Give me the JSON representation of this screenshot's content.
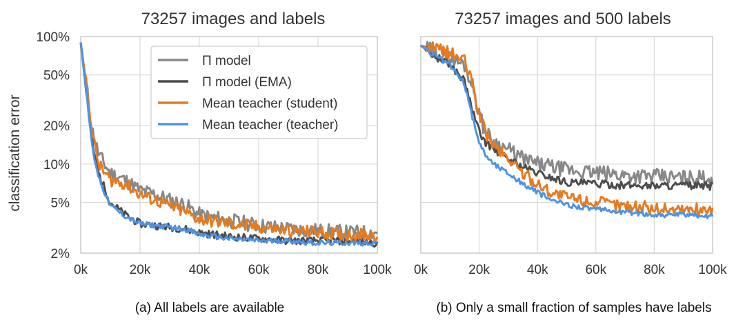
{
  "chart_data": [
    {
      "type": "line",
      "title": "73257 images and labels",
      "caption": "(a) All labels are available",
      "ylabel": "classification error",
      "xlabel": "",
      "xlim": [
        0,
        100000
      ],
      "ylim": [
        0.02,
        1.0
      ],
      "yscale": "log",
      "grid": true,
      "legend_position": "top-right",
      "x_ticks": [
        0,
        20000,
        40000,
        60000,
        80000,
        100000
      ],
      "x_tick_labels": [
        "0k",
        "20k",
        "40k",
        "60k",
        "80k",
        "100k"
      ],
      "y_ticks": [
        0.02,
        0.05,
        0.1,
        0.2,
        0.5,
        1.0
      ],
      "y_tick_labels": [
        "2%",
        "5%",
        "10%",
        "20%",
        "50%",
        "100%"
      ],
      "x": [
        0,
        2000,
        4000,
        6000,
        8000,
        10000,
        15000,
        20000,
        25000,
        30000,
        35000,
        40000,
        50000,
        60000,
        70000,
        80000,
        90000,
        100000
      ],
      "series": [
        {
          "name": "Π model",
          "color": "#888888",
          "values": [
            0.9,
            0.4,
            0.18,
            0.12,
            0.1,
            0.085,
            0.075,
            0.062,
            0.058,
            0.052,
            0.048,
            0.04,
            0.036,
            0.033,
            0.031,
            0.03,
            0.029,
            0.029
          ]
        },
        {
          "name": "Π model (EMA)",
          "color": "#4d4d4d",
          "values": [
            0.9,
            0.35,
            0.14,
            0.085,
            0.065,
            0.05,
            0.04,
            0.034,
            0.033,
            0.032,
            0.031,
            0.029,
            0.027,
            0.026,
            0.025,
            0.025,
            0.025,
            0.024
          ]
        },
        {
          "name": "Mean teacher (student)",
          "color": "#e87a1e",
          "values": [
            0.9,
            0.4,
            0.17,
            0.1,
            0.085,
            0.075,
            0.07,
            0.058,
            0.052,
            0.047,
            0.042,
            0.037,
            0.034,
            0.032,
            0.03,
            0.029,
            0.028,
            0.028
          ]
        },
        {
          "name": "Mean teacher (teacher)",
          "color": "#4d94e6",
          "values": [
            0.9,
            0.34,
            0.13,
            0.08,
            0.06,
            0.047,
            0.039,
            0.034,
            0.033,
            0.032,
            0.031,
            0.028,
            0.026,
            0.025,
            0.025,
            0.024,
            0.024,
            0.024
          ]
        }
      ]
    },
    {
      "type": "line",
      "title": "73257 images and 500 labels",
      "caption": "(b) Only a small fraction of samples have labels",
      "ylabel": "",
      "xlabel": "",
      "xlim": [
        0,
        100000
      ],
      "ylim": [
        0.02,
        1.0
      ],
      "yscale": "log",
      "grid": true,
      "x_ticks": [
        0,
        20000,
        40000,
        60000,
        80000,
        100000
      ],
      "x_tick_labels": [
        "0k",
        "20k",
        "40k",
        "60k",
        "80k",
        "100k"
      ],
      "x": [
        0,
        5000,
        10000,
        15000,
        18000,
        20000,
        22000,
        25000,
        30000,
        35000,
        40000,
        45000,
        50000,
        60000,
        70000,
        80000,
        90000,
        100000
      ],
      "series": [
        {
          "name": "Π model",
          "color": "#888888",
          "values": [
            0.85,
            0.75,
            0.68,
            0.6,
            0.4,
            0.25,
            0.18,
            0.15,
            0.13,
            0.11,
            0.1,
            0.095,
            0.09,
            0.085,
            0.082,
            0.08,
            0.078,
            0.078
          ]
        },
        {
          "name": "Π model (EMA)",
          "color": "#4d4d4d",
          "values": [
            0.85,
            0.7,
            0.6,
            0.45,
            0.25,
            0.18,
            0.15,
            0.13,
            0.11,
            0.095,
            0.085,
            0.078,
            0.072,
            0.07,
            0.068,
            0.068,
            0.068,
            0.067
          ]
        },
        {
          "name": "Mean teacher (student)",
          "color": "#e87a1e",
          "values": [
            0.85,
            0.8,
            0.75,
            0.65,
            0.4,
            0.25,
            0.18,
            0.14,
            0.11,
            0.085,
            0.07,
            0.06,
            0.055,
            0.05,
            0.047,
            0.045,
            0.044,
            0.044
          ]
        },
        {
          "name": "Mean teacher (teacher)",
          "color": "#4d94e6",
          "values": [
            0.85,
            0.7,
            0.6,
            0.42,
            0.22,
            0.15,
            0.12,
            0.1,
            0.085,
            0.07,
            0.06,
            0.052,
            0.048,
            0.044,
            0.042,
            0.04,
            0.04,
            0.039
          ]
        }
      ]
    }
  ]
}
